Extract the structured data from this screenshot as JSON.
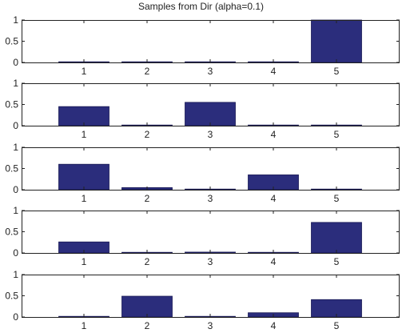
{
  "title": "Samples from Dir (alpha=0.1)",
  "colors": {
    "bar": "#2b2d7c",
    "bar_edge": "#1a1a55",
    "axis": "#222222"
  },
  "chart_data": [
    {
      "type": "bar",
      "categories": [
        "1",
        "2",
        "3",
        "4",
        "5"
      ],
      "values": [
        0.0,
        0.0,
        0.0,
        0.0,
        1.0
      ],
      "ylim": [
        0,
        1
      ],
      "yticks": [
        "0",
        "0.5",
        "1"
      ],
      "grid": false
    },
    {
      "type": "bar",
      "categories": [
        "1",
        "2",
        "3",
        "4",
        "5"
      ],
      "values": [
        0.45,
        0.0,
        0.55,
        0.0,
        0.0
      ],
      "ylim": [
        0,
        1
      ],
      "yticks": [
        "0",
        "0.5",
        "1"
      ],
      "grid": false
    },
    {
      "type": "bar",
      "categories": [
        "1",
        "2",
        "3",
        "4",
        "5"
      ],
      "values": [
        0.6,
        0.05,
        0.0,
        0.35,
        0.0
      ],
      "ylim": [
        0,
        1
      ],
      "yticks": [
        "0",
        "0.5",
        "1"
      ],
      "grid": false
    },
    {
      "type": "bar",
      "categories": [
        "1",
        "2",
        "3",
        "4",
        "5"
      ],
      "values": [
        0.26,
        0.0,
        0.02,
        0.0,
        0.72
      ],
      "ylim": [
        0,
        1
      ],
      "yticks": [
        "0",
        "0.5",
        "1"
      ],
      "grid": false
    },
    {
      "type": "bar",
      "categories": [
        "1",
        "2",
        "3",
        "4",
        "5"
      ],
      "values": [
        0.0,
        0.49,
        0.0,
        0.1,
        0.41
      ],
      "ylim": [
        0,
        1
      ],
      "yticks": [
        "0",
        "0.5",
        "1"
      ],
      "grid": false
    }
  ]
}
